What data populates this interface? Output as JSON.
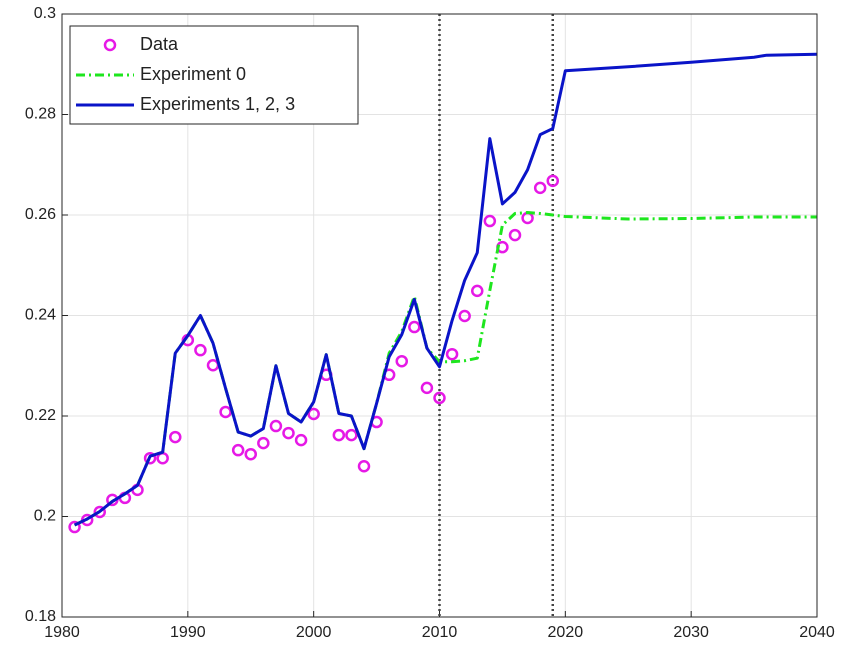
{
  "chart_data": {
    "type": "line",
    "xlim": [
      1980,
      2040
    ],
    "xticks": [
      1980,
      1990,
      2000,
      2010,
      2020,
      2030,
      2040
    ],
    "ylim": [
      0.18,
      0.3
    ],
    "yticks": [
      0.18,
      0.2,
      0.22,
      0.24,
      0.26,
      0.28,
      0.3
    ],
    "grid": true,
    "legend": "top-left",
    "vlines": [
      2010,
      2019
    ],
    "vline_color": "#444444",
    "series": [
      {
        "name": "Data",
        "color": "#e619e6",
        "mode": "markers",
        "x": [
          1981,
          1982,
          1983,
          1984,
          1985,
          1986,
          1987,
          1988,
          1989,
          1990,
          1991,
          1992,
          1993,
          1994,
          1995,
          1996,
          1997,
          1998,
          1999,
          2000,
          2001,
          2002,
          2003,
          2004,
          2005,
          2006,
          2007,
          2008,
          2009,
          2010,
          2011,
          2012,
          2013,
          2014,
          2015,
          2016,
          2017,
          2018,
          2019
        ],
        "values": [
          0.1979,
          0.1993,
          0.2009,
          0.2033,
          0.2037,
          0.2053,
          0.2116,
          0.2116,
          0.2158,
          0.2351,
          0.2331,
          0.2301,
          0.2208,
          0.2132,
          0.2124,
          0.2146,
          0.218,
          0.2166,
          0.2152,
          0.2204,
          0.2282,
          0.2162,
          0.2162,
          0.21,
          0.2188,
          0.2282,
          0.2309,
          0.2377,
          0.2256,
          0.2236,
          0.2323,
          0.2399,
          0.2449,
          0.2588,
          0.2536,
          0.256,
          0.2594,
          0.2654,
          0.2668
        ]
      },
      {
        "name": "Experiment 0",
        "color": "#1ee61e",
        "mode": "dashdot",
        "x": [
          1981,
          1982,
          1983,
          1984,
          1985,
          1986,
          1987,
          1988,
          1989,
          1990,
          1991,
          1992,
          1993,
          1994,
          1995,
          1996,
          1997,
          1998,
          1999,
          2000,
          2001,
          2002,
          2003,
          2004,
          2005,
          2006,
          2007,
          2008,
          2009,
          2010,
          2011,
          2012,
          2013,
          2014,
          2015,
          2016,
          2017,
          2018,
          2019,
          2020,
          2025,
          2030,
          2035,
          2040
        ],
        "values": [
          0.1983,
          0.1995,
          0.201,
          0.203,
          0.2045,
          0.2062,
          0.212,
          0.2128,
          0.2325,
          0.236,
          0.24,
          0.2345,
          0.2255,
          0.2168,
          0.216,
          0.2175,
          0.23,
          0.2205,
          0.2188,
          0.2228,
          0.2322,
          0.2205,
          0.22,
          0.2135,
          0.2225,
          0.2325,
          0.2368,
          0.2438,
          0.2335,
          0.2308,
          0.2308,
          0.231,
          0.2315,
          0.245,
          0.258,
          0.2603,
          0.2605,
          0.2603,
          0.26,
          0.2597,
          0.2592,
          0.2593,
          0.2596,
          0.2596
        ]
      },
      {
        "name": "Experiments 1, 2, 3",
        "color": "#0a14c8",
        "mode": "solid",
        "x": [
          1981,
          1982,
          1983,
          1984,
          1985,
          1986,
          1987,
          1988,
          1989,
          1990,
          1991,
          1992,
          1993,
          1994,
          1995,
          1996,
          1997,
          1998,
          1999,
          2000,
          2001,
          2002,
          2003,
          2004,
          2005,
          2006,
          2007,
          2008,
          2009,
          2010,
          2011,
          2012,
          2013,
          2014,
          2015,
          2016,
          2017,
          2018,
          2019,
          2020,
          2025,
          2030,
          2035,
          2036,
          2040
        ],
        "values": [
          0.1983,
          0.1995,
          0.201,
          0.203,
          0.2045,
          0.2062,
          0.212,
          0.2128,
          0.2325,
          0.236,
          0.24,
          0.2345,
          0.2255,
          0.2168,
          0.216,
          0.2175,
          0.23,
          0.2205,
          0.2188,
          0.2228,
          0.2322,
          0.2205,
          0.22,
          0.2135,
          0.2225,
          0.2318,
          0.2362,
          0.2432,
          0.2335,
          0.2298,
          0.239,
          0.247,
          0.2525,
          0.2752,
          0.2622,
          0.2645,
          0.269,
          0.276,
          0.2772,
          0.2887,
          0.2895,
          0.2904,
          0.2914,
          0.2918,
          0.292
        ]
      }
    ]
  }
}
